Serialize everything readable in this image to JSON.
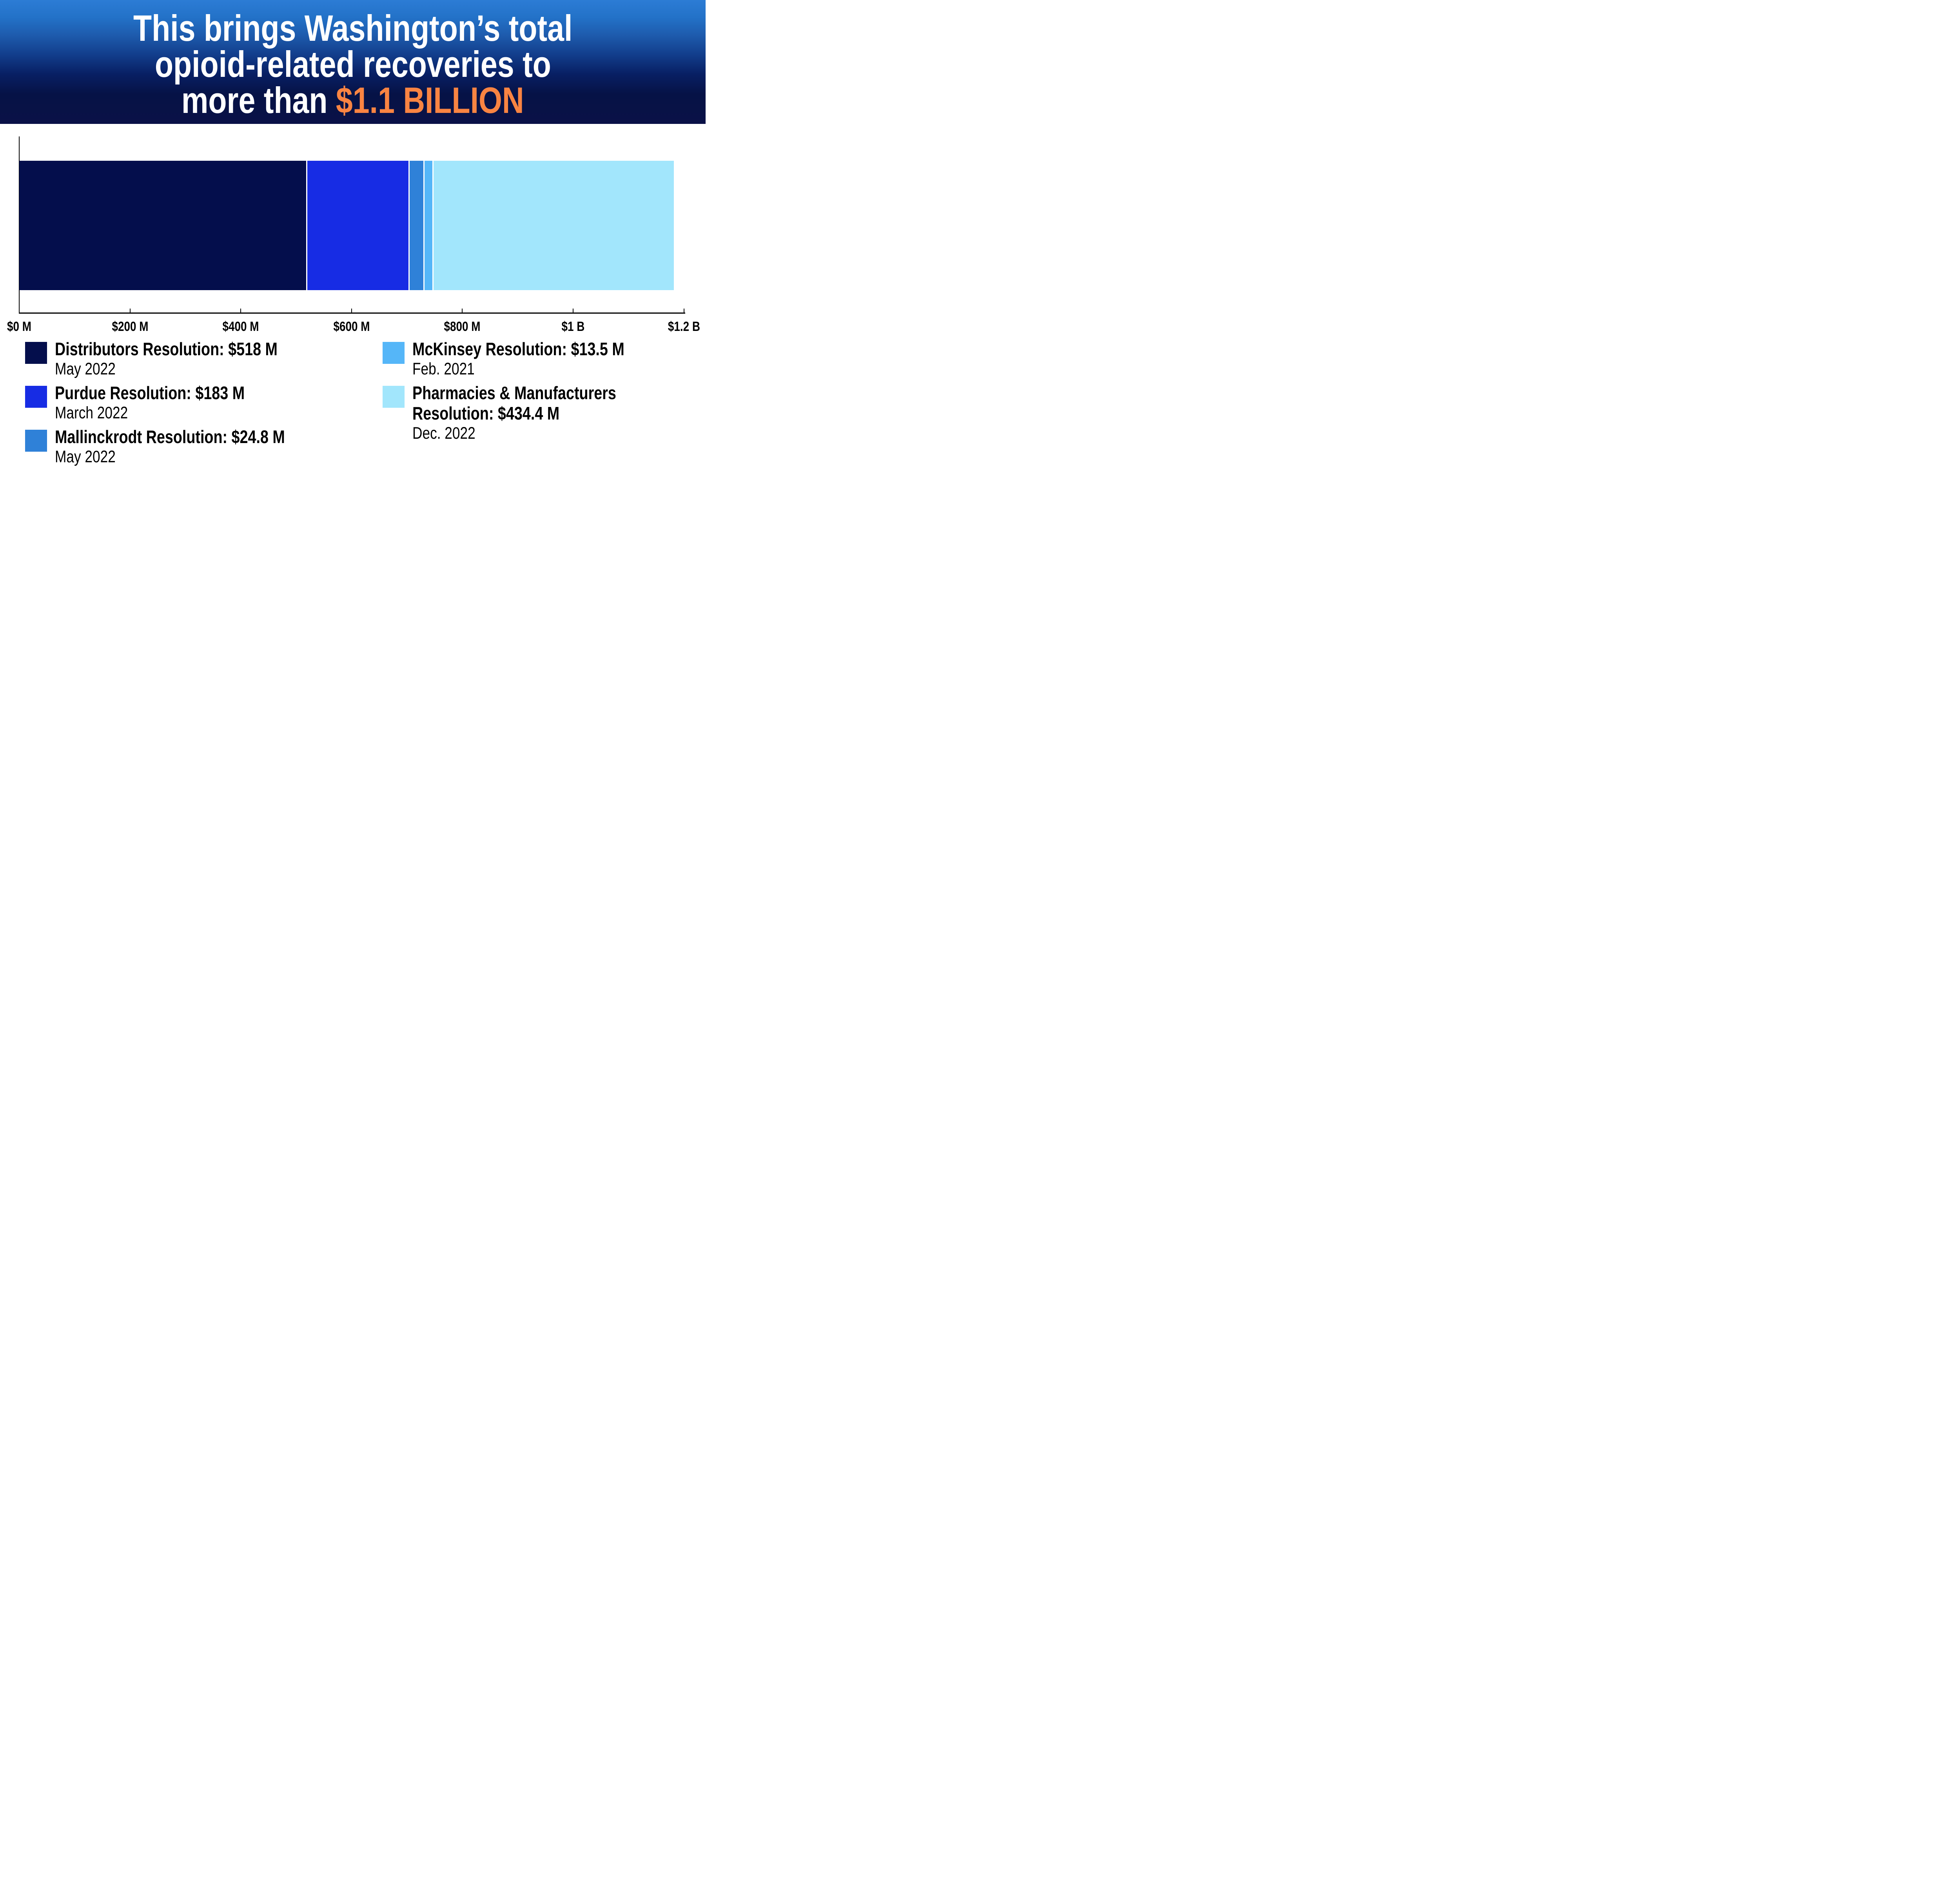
{
  "header": {
    "title_line1": "This brings Washington’s total",
    "title_line2": "opioid-related recoveries to",
    "title_line3_prefix": "more than ",
    "title_line3_highlight": "$1.1 BILLION"
  },
  "colors": {
    "header_gradient_top": "#2c7cd5",
    "header_gradient_bottom": "#0a1147",
    "highlight_orange": "#f98442",
    "axis": "#000000",
    "background": "#ffffff"
  },
  "chart_data": {
    "type": "bar",
    "orientation": "horizontal-stacked",
    "unit": "USD millions",
    "title": "Washington opioid-related recoveries, total more than $1.1 billion",
    "x_range_m": [
      0,
      1200
    ],
    "xlabel_ticks": [
      "$0 M",
      "$200 M",
      "$400 M",
      "$600 M",
      "$800 M",
      "$1 B",
      "$1.2 B"
    ],
    "tick_step_m": 200,
    "grid": false,
    "total_m": 1173.7,
    "segments": [
      {
        "name": "Distributors Resolution",
        "value_m": 518,
        "date": "May 2022",
        "color": "#040e4c"
      },
      {
        "name": "Purdue Resolution",
        "value_m": 183,
        "date": "March 2022",
        "color": "#172ce4"
      },
      {
        "name": "Mallinckrodt Resolution",
        "value_m": 24.8,
        "date": "May 2022",
        "color": "#2f81d8"
      },
      {
        "name": "McKinsey Resolution",
        "value_m": 13.5,
        "date": "Feb. 2021",
        "color": "#55b6f8"
      },
      {
        "name": "Pharmacies & Manufacturers Resolution",
        "value_m": 434.4,
        "date": "Dec. 2022",
        "color": "#a2e6fc"
      }
    ]
  },
  "legend": {
    "left": [
      {
        "title": "Distributors Resolution: $518 M",
        "date": "May 2022",
        "color": "#040e4c"
      },
      {
        "title": "Purdue Resolution: $183 M",
        "date": "March 2022",
        "color": "#172ce4"
      },
      {
        "title": "Mallinckrodt Resolution: $24.8 M",
        "date": "May 2022",
        "color": "#2f81d8"
      }
    ],
    "right": [
      {
        "title": "McKinsey Resolution: $13.5 M",
        "date": "Feb. 2021",
        "color": "#55b6f8"
      },
      {
        "title": "Pharmacies & Manufacturers Resolution: $434.4 M",
        "date": "Dec. 2022",
        "color": "#a2e6fc"
      }
    ]
  }
}
